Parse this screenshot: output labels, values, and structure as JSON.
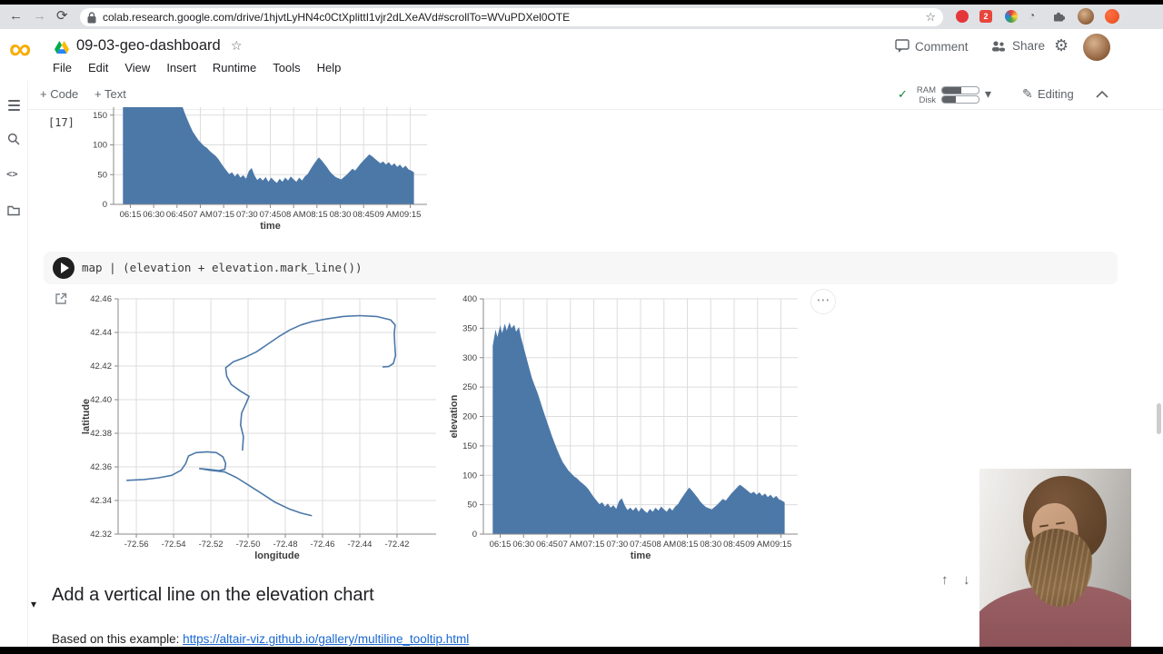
{
  "browser": {
    "url": "colab.research.google.com/drive/1hjvtLyHN4c0CtXplittI1vjr2dLXeAVd#scrollTo=WVuPDXel0OTE",
    "extension_badge": "2"
  },
  "header": {
    "title": "09-03-geo-dashboard",
    "menus": [
      "File",
      "Edit",
      "View",
      "Insert",
      "Runtime",
      "Tools",
      "Help"
    ],
    "comment_label": "Comment",
    "share_label": "Share"
  },
  "toolbar": {
    "add_code_label": "+ Code",
    "add_text_label": "+ Text",
    "ram_label": "RAM",
    "disk_label": "Disk",
    "editing_label": "Editing"
  },
  "cells": {
    "execution_label": "[17]",
    "code": "map | (elevation + elevation.mark_line())",
    "markdown_heading": "Add a vertical line on the elevation chart",
    "markdown_text": "Based on this example: ",
    "markdown_link": "https://altair-viz.github.io/gallery/multiline_tooltip.html"
  },
  "icons": {
    "back": "←",
    "forward": "→",
    "reload": "⟳",
    "star": "☆",
    "check": "✓",
    "caret_down": "▾",
    "gear": "⚙",
    "pencil": "✎",
    "dots": "⋯",
    "up_arrow": "↑",
    "down_arrow": "↓",
    "history": "◔",
    "infinity": "∞",
    "md_caret": "▾",
    "code_brackets": "<>"
  },
  "colors": {
    "chart_blue": "#4c78a8",
    "accent_orange": "#f9ab00",
    "link_blue": "#1967d2"
  },
  "chart_data": [
    {
      "type": "area",
      "note": "Partially visible output of cell [17]: same elevation-vs-time area chart as chart_data[2], scrolled so only values below ~160 are shown",
      "data_ref": 2,
      "xlabel": "time",
      "ylabel": "",
      "color": "#4c78a8",
      "ylim": [
        0,
        400
      ],
      "visible_ytick_labels": [
        "0",
        "50",
        "100",
        "150"
      ]
    },
    {
      "type": "line",
      "title": "",
      "xlabel": "longitude",
      "ylabel": "latitude",
      "color": "#4c78a8",
      "xlim": [
        -72.5698,
        -72.399
      ],
      "ylim": [
        42.32,
        42.46
      ],
      "xtick_values": [
        -72.56,
        -72.54,
        -72.52,
        -72.5,
        -72.48,
        -72.46,
        -72.44,
        -72.42
      ],
      "xtick_labels": [
        "-72.56",
        "-72.54",
        "-72.52",
        "-72.50",
        "-72.48",
        "-72.46",
        "-72.44",
        "-72.42"
      ],
      "ytick_values": [
        42.32,
        42.34,
        42.36,
        42.38,
        42.4,
        42.42,
        42.44,
        42.46
      ],
      "ytick_labels": [
        "42.32",
        "42.34",
        "42.36",
        "42.38",
        "42.40",
        "42.42",
        "42.44",
        "42.46"
      ],
      "paths": [
        {
          "x": [
            -72.565,
            -72.556,
            -72.548,
            -72.541,
            -72.536,
            -72.5335,
            -72.532,
            -72.528,
            -72.522,
            -72.517,
            -72.5135,
            -72.512,
            -72.5125,
            -72.516,
            -72.521,
            -72.526,
            -72.5205,
            -72.5125,
            -72.506,
            -72.4995,
            -72.4925,
            -72.4855,
            -72.478,
            -72.4715,
            -72.466
          ],
          "y": [
            42.352,
            42.3525,
            42.3535,
            42.355,
            42.358,
            42.362,
            42.3665,
            42.3685,
            42.369,
            42.3685,
            42.366,
            42.362,
            42.3585,
            42.3578,
            42.3585,
            42.359,
            42.358,
            42.357,
            42.3535,
            42.349,
            42.344,
            42.339,
            42.335,
            42.3325,
            42.331
          ]
        },
        {
          "x": [
            -72.503,
            -72.5025,
            -72.504,
            -72.5035,
            -72.501,
            -72.4995,
            -72.504,
            -72.509,
            -72.5115,
            -72.512,
            -72.508,
            -72.502,
            -72.4955,
            -72.4895,
            -72.4835,
            -72.4775,
            -72.4715,
            -72.4655,
            -72.458,
            -72.449,
            -72.44,
            -72.431,
            -72.4235,
            -72.421,
            -72.4215,
            -72.4212,
            -72.4208,
            -72.422,
            -72.4245,
            -72.4275
          ],
          "y": [
            42.37,
            42.378,
            42.385,
            42.392,
            42.398,
            42.402,
            42.405,
            42.409,
            42.414,
            42.419,
            42.4225,
            42.425,
            42.4285,
            42.433,
            42.4375,
            42.4415,
            42.4445,
            42.4465,
            42.448,
            42.4495,
            42.45,
            42.4495,
            42.4475,
            42.4445,
            42.4395,
            42.433,
            42.4262,
            42.4215,
            42.4197,
            42.4195
          ]
        }
      ]
    },
    {
      "type": "area",
      "title": "",
      "xlabel": "time",
      "ylabel": "elevation",
      "color": "#4c78a8",
      "xlim": [
        6.07,
        9.43
      ],
      "ylim": [
        0,
        400
      ],
      "xtick_values": [
        6.25,
        6.5,
        6.75,
        7,
        7.25,
        7.5,
        7.75,
        8,
        8.25,
        8.5,
        8.75,
        9,
        9.25
      ],
      "xtick_labels": [
        "06:15",
        "06:30",
        "06:45",
        "07 AM",
        "07:15",
        "07:30",
        "07:45",
        "08 AM",
        "08:15",
        "08:30",
        "08:45",
        "09 AM",
        "09:15"
      ],
      "ytick_values": [
        0,
        50,
        100,
        150,
        200,
        250,
        300,
        350,
        400
      ],
      "ytick_labels": [
        "0",
        "50",
        "100",
        "150",
        "200",
        "250",
        "300",
        "350",
        "400"
      ],
      "x": [
        6.17,
        6.2,
        6.22,
        6.25,
        6.27,
        6.3,
        6.32,
        6.35,
        6.37,
        6.4,
        6.42,
        6.45,
        6.47,
        6.5,
        6.53,
        6.56,
        6.59,
        6.62,
        6.65,
        6.68,
        6.71,
        6.74,
        6.77,
        6.8,
        6.83,
        6.86,
        6.89,
        6.92,
        6.95,
        6.98,
        7.01,
        7.04,
        7.07,
        7.1,
        7.13,
        7.16,
        7.19,
        7.22,
        7.25,
        7.28,
        7.31,
        7.34,
        7.37,
        7.4,
        7.43,
        7.46,
        7.49,
        7.52,
        7.55,
        7.58,
        7.61,
        7.64,
        7.67,
        7.7,
        7.73,
        7.76,
        7.79,
        7.82,
        7.85,
        7.88,
        7.91,
        7.94,
        7.97,
        8.0,
        8.03,
        8.06,
        8.09,
        8.12,
        8.15,
        8.18,
        8.21,
        8.24,
        8.27,
        8.3,
        8.33,
        8.36,
        8.39,
        8.42,
        8.45,
        8.48,
        8.51,
        8.54,
        8.57,
        8.6,
        8.63,
        8.66,
        8.69,
        8.72,
        8.75,
        8.78,
        8.81,
        8.84,
        8.87,
        8.9,
        8.93,
        8.96,
        8.99,
        9.02,
        9.05,
        9.08,
        9.11,
        9.14,
        9.17,
        9.2,
        9.23,
        9.26,
        9.29
      ],
      "y": [
        320,
        348,
        335,
        355,
        342,
        358,
        346,
        360,
        350,
        356,
        344,
        352,
        336,
        318,
        300,
        282,
        265,
        252,
        240,
        225,
        210,
        196,
        182,
        168,
        155,
        143,
        132,
        122,
        115,
        108,
        103,
        98,
        95,
        90,
        86,
        82,
        77,
        70,
        63,
        57,
        51,
        54,
        47,
        52,
        45,
        49,
        43,
        56,
        61,
        49,
        41,
        45,
        40,
        46,
        38,
        45,
        40,
        36,
        43,
        38,
        45,
        40,
        47,
        42,
        38,
        45,
        40,
        47,
        51,
        59,
        66,
        73,
        79,
        74,
        68,
        62,
        55,
        50,
        46,
        44,
        42,
        46,
        50,
        55,
        60,
        57,
        63,
        69,
        74,
        79,
        84,
        81,
        77,
        73,
        69,
        72,
        67,
        71,
        65,
        69,
        63,
        67,
        61,
        65,
        59,
        57,
        54
      ]
    }
  ]
}
